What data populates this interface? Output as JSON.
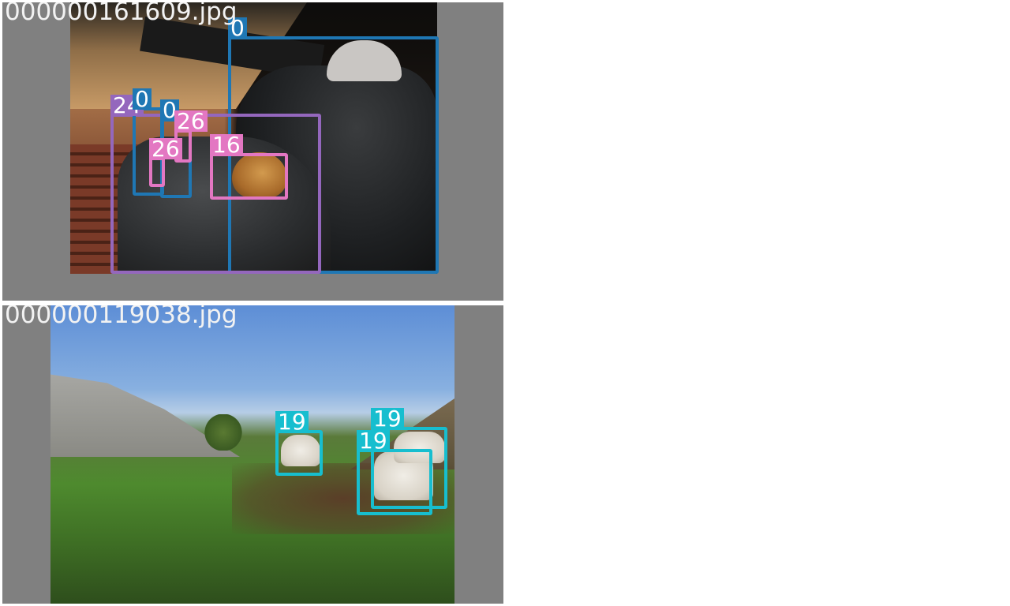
{
  "images": [
    {
      "filename": "000000161609.jpg",
      "detections": [
        {
          "label": "0",
          "color": "#1f77b4"
        },
        {
          "label": "24",
          "color": "#9467bd"
        },
        {
          "label": "0",
          "color": "#1f77b4"
        },
        {
          "label": "0",
          "color": "#1f77b4"
        },
        {
          "label": "26",
          "color": "#e377c2"
        },
        {
          "label": "26",
          "color": "#e377c2"
        },
        {
          "label": "16",
          "color": "#e377c2"
        }
      ]
    },
    {
      "filename": "000000119038.jpg",
      "detections": [
        {
          "label": "19",
          "color": "#17becf"
        },
        {
          "label": "19",
          "color": "#17becf"
        },
        {
          "label": "19",
          "color": "#17becf"
        }
      ]
    }
  ]
}
